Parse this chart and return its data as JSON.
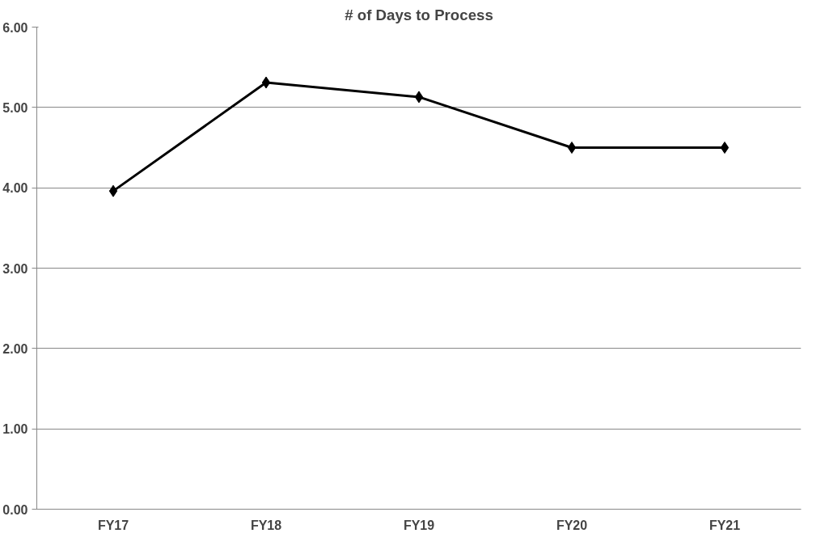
{
  "chart_data": {
    "type": "line",
    "title": "# of Days to Process",
    "categories": [
      "FY17",
      "FY18",
      "FY19",
      "FY20",
      "FY21"
    ],
    "series": [
      {
        "color": "#000000",
        "values": [
          3.96,
          5.31,
          5.13,
          4.5,
          4.5
        ]
      }
    ],
    "ylim": [
      0,
      6
    ],
    "yticks": [
      {
        "value": 0,
        "label": "0.00"
      },
      {
        "value": 1,
        "label": "1.00"
      },
      {
        "value": 2,
        "label": "2.00"
      },
      {
        "value": 3,
        "label": "3.00"
      },
      {
        "value": 4,
        "label": "4.00"
      },
      {
        "value": 5,
        "label": "5.00"
      },
      {
        "value": 6,
        "label": "6.00"
      }
    ],
    "grid": "y",
    "marker": "diamond",
    "line_style": "solid"
  }
}
